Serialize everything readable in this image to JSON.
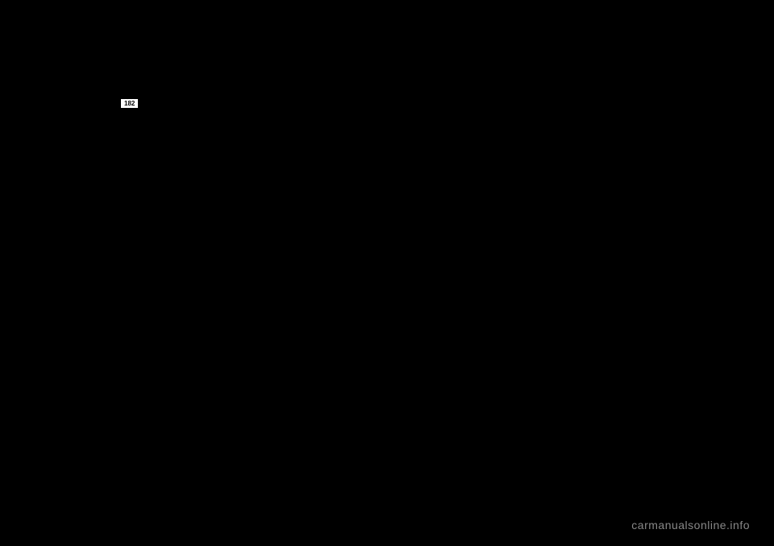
{
  "page": {
    "number": "182",
    "background_color": "#000000"
  },
  "link": {
    "text": "",
    "color": "#cc0000"
  },
  "watermark": {
    "text": "carmanualsonline.info",
    "color": "#888888"
  }
}
